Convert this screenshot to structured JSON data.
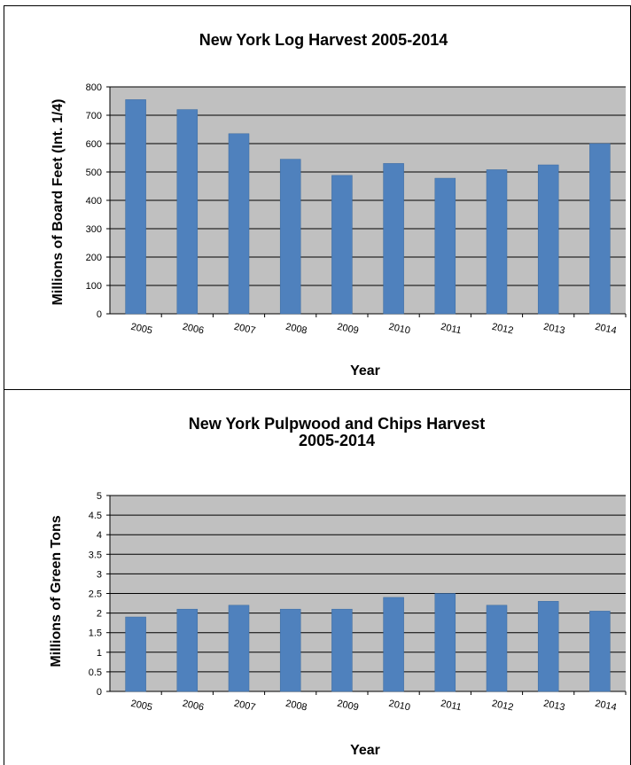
{
  "chart_data": [
    {
      "type": "bar",
      "title": "New York Log Harvest 2005-2014",
      "xlabel": "Year",
      "ylabel": "Millions of Board Feet (Int. 1/4)",
      "categories": [
        "2005",
        "2006",
        "2007",
        "2008",
        "2009",
        "2010",
        "2011",
        "2012",
        "2013",
        "2014"
      ],
      "values": [
        755,
        720,
        635,
        545,
        488,
        530,
        478,
        508,
        525,
        600
      ],
      "ylim": [
        0,
        800
      ],
      "yticks": [
        "0",
        "100",
        "200",
        "300",
        "400",
        "500",
        "600",
        "700",
        "800"
      ],
      "grid": true,
      "colors": {
        "bar": "#4f81bd",
        "plot_bg": "#c0c0c0"
      }
    },
    {
      "type": "bar",
      "title": "New York Pulpwood and Chips Harvest",
      "subtitle": "2005-2014",
      "xlabel": "Year",
      "ylabel": "Millions of Green Tons",
      "categories": [
        "2005",
        "2006",
        "2007",
        "2008",
        "2009",
        "2010",
        "2011",
        "2012",
        "2013",
        "2014"
      ],
      "values": [
        1.9,
        2.1,
        2.2,
        2.1,
        2.1,
        2.4,
        2.5,
        2.2,
        2.3,
        2.05
      ],
      "ylim": [
        0,
        5
      ],
      "yticks": [
        "0",
        "0.5",
        "1",
        "1.5",
        "2",
        "2.5",
        "3",
        "3.5",
        "4",
        "4.5",
        "5"
      ],
      "grid": true,
      "colors": {
        "bar": "#4f81bd",
        "plot_bg": "#c0c0c0"
      }
    }
  ]
}
